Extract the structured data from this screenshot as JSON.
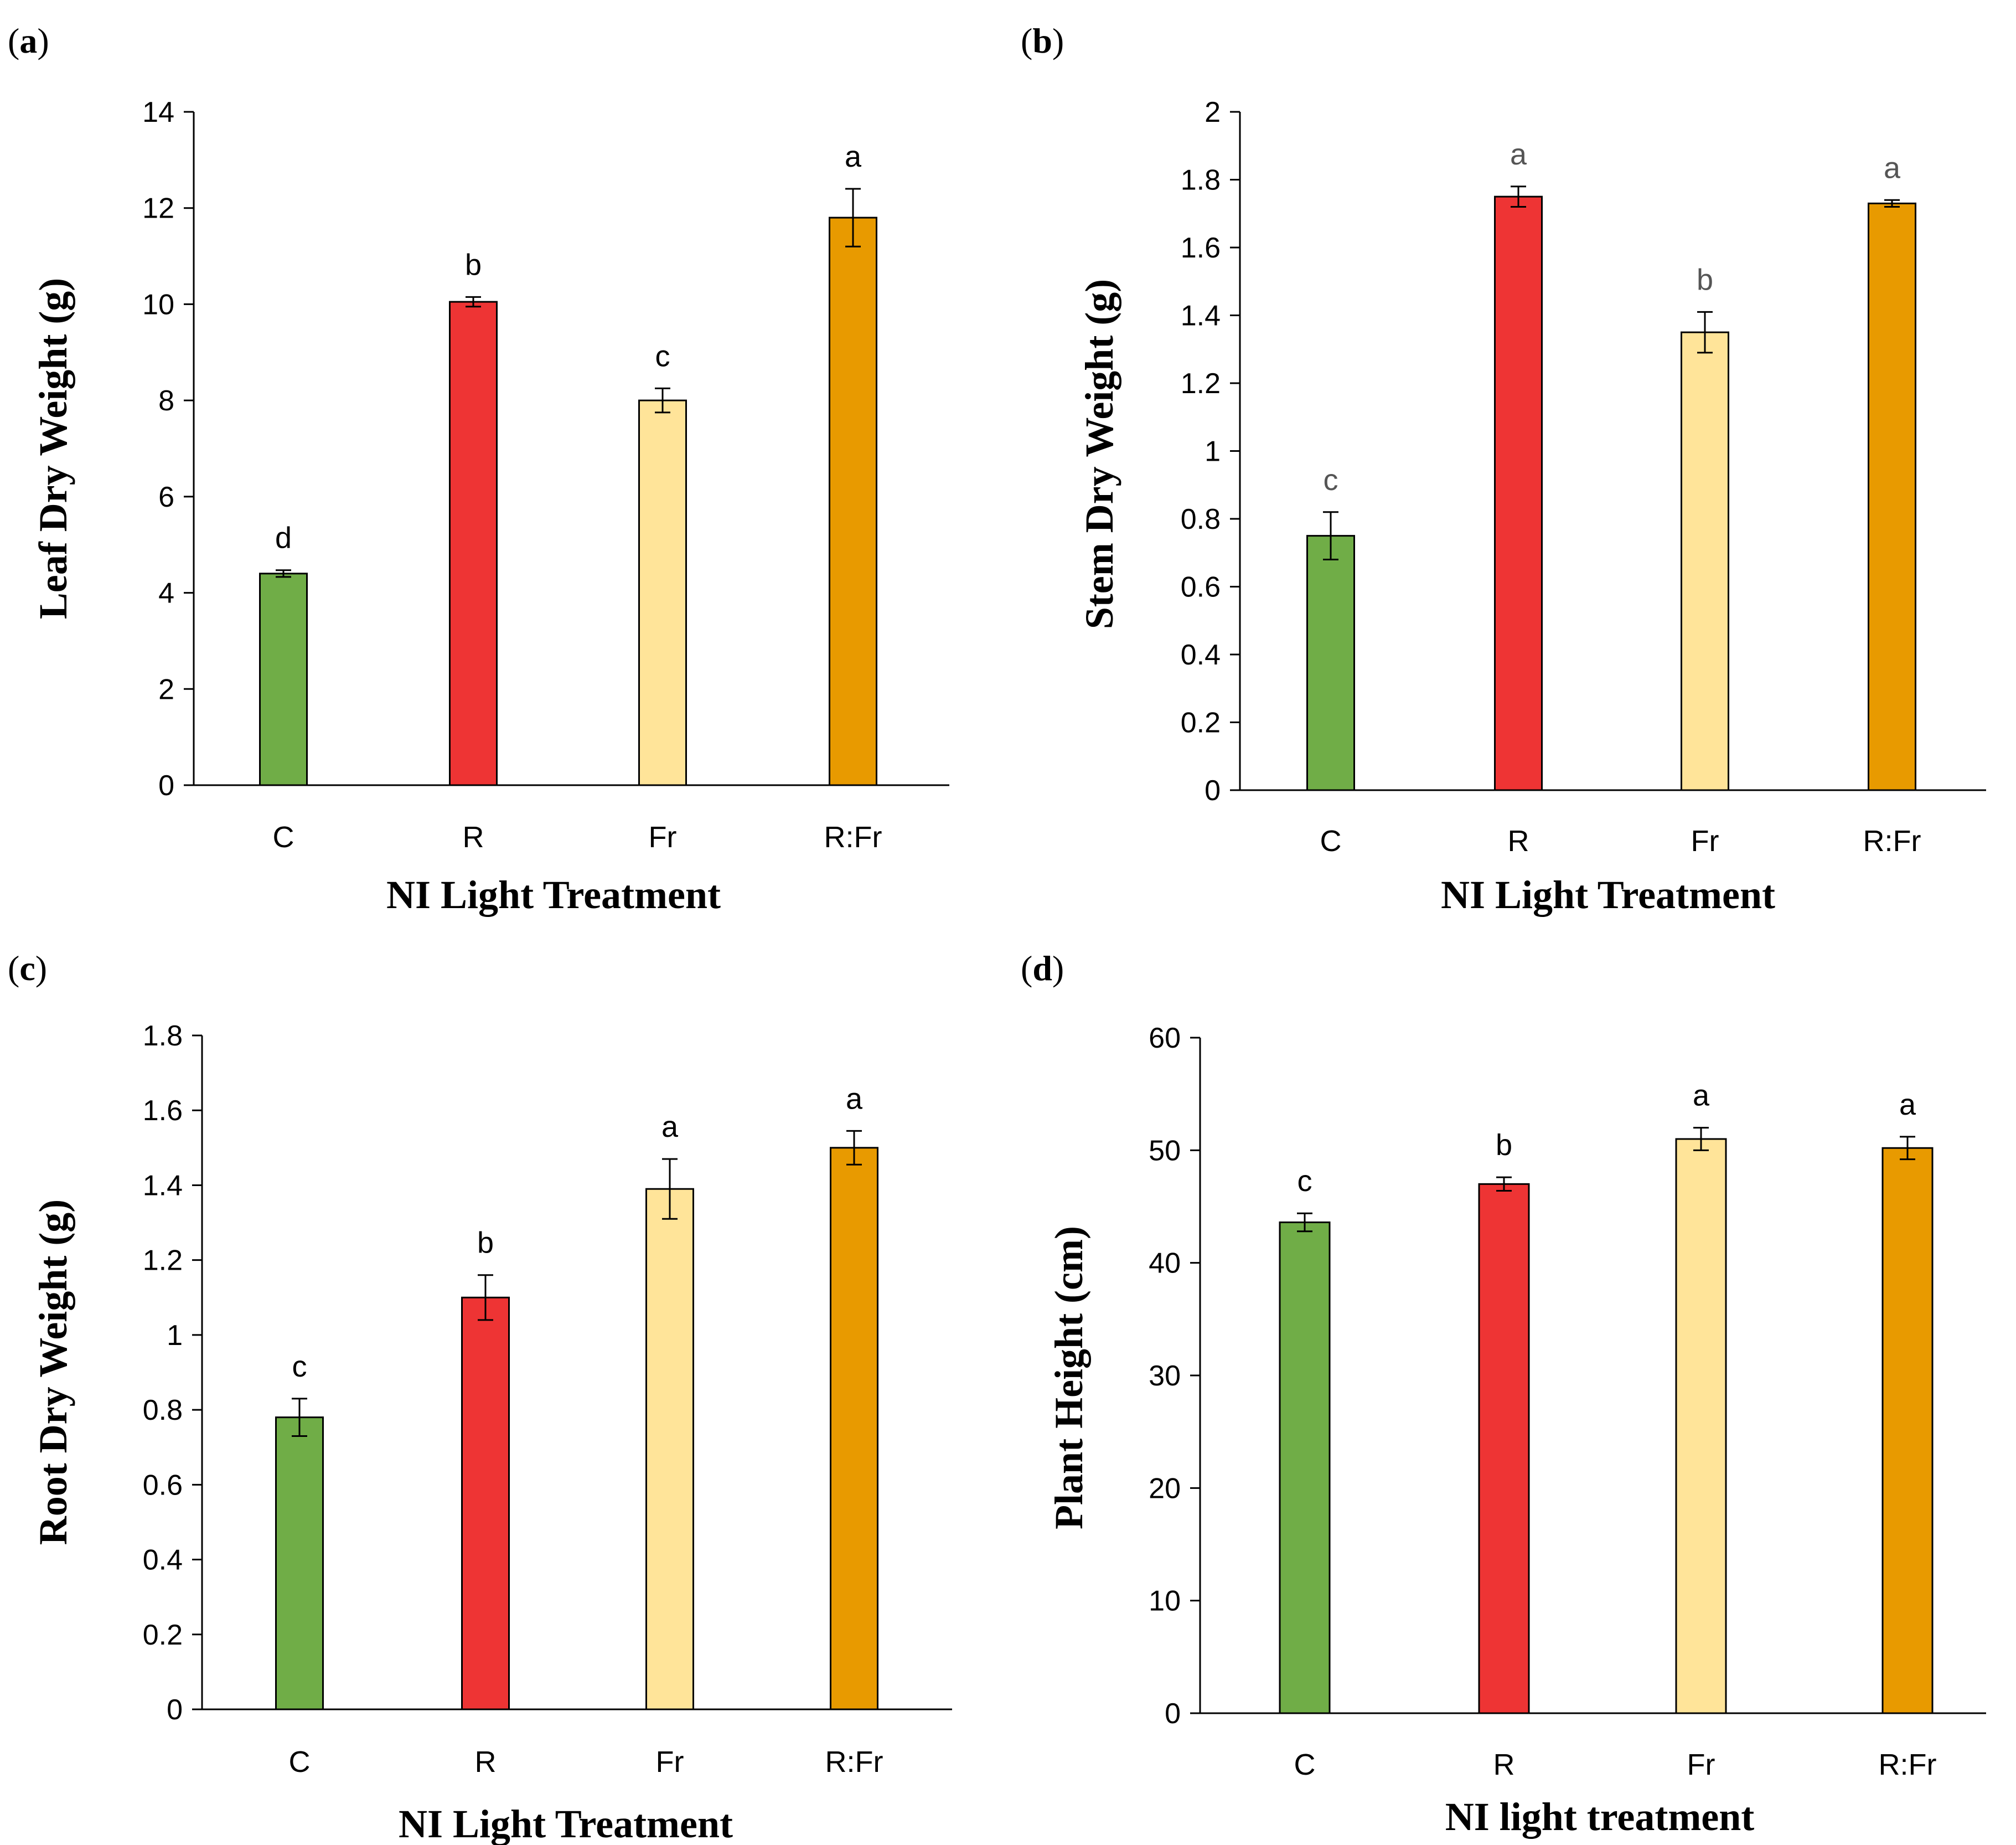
{
  "colors": {
    "C": "#70ad47",
    "R": "#ee3434",
    "Fr": "#ffe499",
    "R:Fr": "#e89a00"
  },
  "chart_data": [
    {
      "panel": "(a)",
      "panel_letter": "a",
      "type": "bar",
      "title": "",
      "xlabel": "NI Light Treatment",
      "ylabel": "Leaf Dry Weight (g)",
      "categories": [
        "C",
        "R",
        "Fr",
        "R:Fr"
      ],
      "values": [
        4.4,
        10.05,
        8.0,
        11.8
      ],
      "errors": [
        0.07,
        0.1,
        0.25,
        0.6
      ],
      "significance": [
        "d",
        "b",
        "c",
        "a"
      ],
      "ylim": [
        0,
        14
      ],
      "yticks": [
        "0",
        "2",
        "4",
        "6",
        "8",
        "10",
        "12",
        "14"
      ],
      "grid": false
    },
    {
      "panel": "(b)",
      "panel_letter": "b",
      "type": "bar",
      "title": "",
      "xlabel": "NI Light Treatment",
      "ylabel": "Stem Dry Weight (g)",
      "categories": [
        "C",
        "R",
        "Fr",
        "R:Fr"
      ],
      "values": [
        0.75,
        1.75,
        1.35,
        1.73
      ],
      "errors": [
        0.07,
        0.03,
        0.06,
        0.01
      ],
      "significance": [
        "c",
        "a",
        "b",
        "a"
      ],
      "ylim": [
        0,
        2
      ],
      "yticks": [
        "0",
        "0.2",
        "0.4",
        "0.6",
        "0.8",
        "1",
        "1.2",
        "1.4",
        "1.6",
        "1.8",
        "2"
      ],
      "grid": false
    },
    {
      "panel": "(c)",
      "panel_letter": "c",
      "type": "bar",
      "title": "",
      "xlabel": "NI Light Treatment",
      "ylabel": "Root Dry Weight (g)",
      "categories": [
        "C",
        "R",
        "Fr",
        "R:Fr"
      ],
      "values": [
        0.78,
        1.1,
        1.39,
        1.5
      ],
      "errors": [
        0.05,
        0.06,
        0.08,
        0.045
      ],
      "significance": [
        "c",
        "b",
        "a",
        "a"
      ],
      "ylim": [
        0,
        1.8
      ],
      "yticks": [
        "0",
        "0.2",
        "0.4",
        "0.6",
        "0.8",
        "1",
        "1.2",
        "1.4",
        "1.6",
        "1.8"
      ],
      "grid": false
    },
    {
      "panel": "(d)",
      "panel_letter": "d",
      "type": "bar",
      "title": "",
      "xlabel": "NI light treatment",
      "ylabel": "Plant Height (cm)",
      "categories": [
        "C",
        "R",
        "Fr",
        "R:Fr"
      ],
      "values": [
        43.6,
        47.0,
        51.0,
        50.2
      ],
      "errors": [
        0.8,
        0.6,
        1.0,
        1.0
      ],
      "significance": [
        "c",
        "b",
        "a",
        "a"
      ],
      "ylim": [
        0,
        60
      ],
      "yticks": [
        "0",
        "10",
        "20",
        "30",
        "40",
        "50",
        "60"
      ],
      "grid": false
    }
  ]
}
